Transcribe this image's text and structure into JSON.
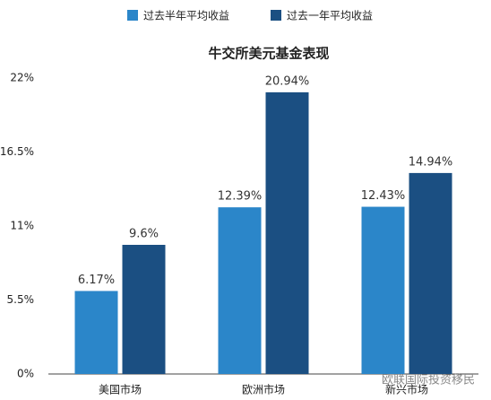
{
  "chart_data": {
    "type": "bar",
    "title": "牛交所美元基金表现",
    "categories": [
      "美国市场",
      "欧洲市场",
      "新兴市场"
    ],
    "series": [
      {
        "name": "过去半年平均收益",
        "color": "#2b86c9",
        "values": [
          6.17,
          12.39,
          12.43
        ],
        "value_labels": [
          "6.17%",
          "12.39%",
          "12.43%"
        ]
      },
      {
        "name": "过去一年平均收益",
        "color": "#1b4f82",
        "values": [
          9.6,
          20.94,
          14.94
        ],
        "value_labels": [
          "9.6%",
          "20.94%",
          "14.94%"
        ]
      }
    ],
    "ylim": [
      0,
      22
    ],
    "yticks": [
      {
        "value": 0,
        "label": "0%"
      },
      {
        "value": 5.5,
        "label": "5.5%"
      },
      {
        "value": 11,
        "label": "11%"
      },
      {
        "value": 16.5,
        "label": "16.5%"
      },
      {
        "value": 22,
        "label": "22%"
      }
    ],
    "grid": false,
    "legend": "top",
    "watermark": "欧联国际投资移民"
  }
}
